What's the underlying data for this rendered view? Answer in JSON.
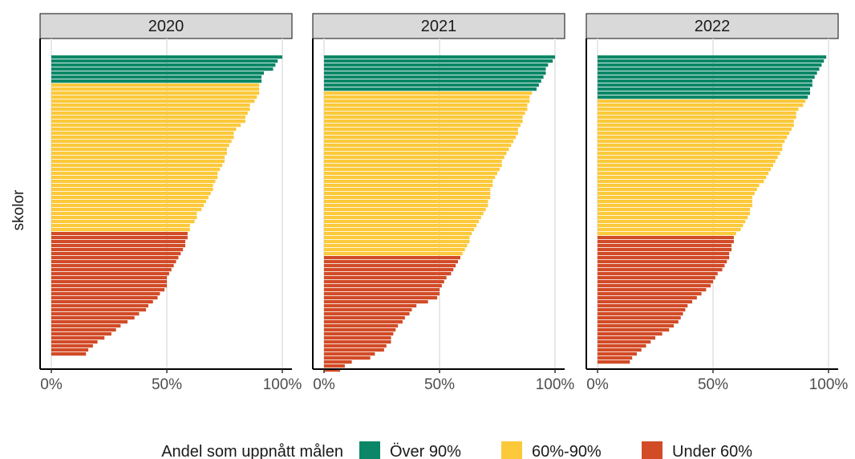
{
  "chart_data": {
    "type": "bar",
    "orientation": "horizontal",
    "title": "",
    "ylabel": "skolor",
    "xlabel": "",
    "xlim": [
      0,
      1
    ],
    "x_ticks": [
      "0%",
      "50%",
      "100%"
    ],
    "legend": {
      "title": "Andel som uppnått målen",
      "position": "bottom",
      "entries": [
        {
          "label": "Över 90%",
          "color": "#0b8767"
        },
        {
          "label": "60%-90%",
          "color": "#fcc93b"
        },
        {
          "label": "Under 60%",
          "color": "#d24b27"
        }
      ]
    },
    "thresholds": [
      0.6,
      0.9
    ],
    "panels": [
      {
        "label": "2020",
        "values": [
          1.0,
          0.98,
          0.97,
          0.96,
          0.92,
          0.91,
          0.91,
          0.9,
          0.9,
          0.9,
          0.89,
          0.88,
          0.86,
          0.86,
          0.85,
          0.84,
          0.84,
          0.82,
          0.8,
          0.79,
          0.79,
          0.78,
          0.77,
          0.76,
          0.76,
          0.75,
          0.75,
          0.74,
          0.73,
          0.72,
          0.72,
          0.71,
          0.7,
          0.7,
          0.69,
          0.68,
          0.67,
          0.66,
          0.65,
          0.63,
          0.63,
          0.62,
          0.6,
          0.6,
          0.59,
          0.59,
          0.58,
          0.58,
          0.57,
          0.56,
          0.55,
          0.54,
          0.53,
          0.52,
          0.51,
          0.5,
          0.5,
          0.5,
          0.49,
          0.47,
          0.46,
          0.44,
          0.42,
          0.41,
          0.38,
          0.36,
          0.33,
          0.3,
          0.28,
          0.26,
          0.23,
          0.2,
          0.18,
          0.16,
          0.15
        ]
      },
      {
        "label": "2021",
        "values": [
          1.0,
          0.99,
          0.97,
          0.96,
          0.96,
          0.95,
          0.94,
          0.93,
          0.92,
          0.9,
          0.89,
          0.89,
          0.88,
          0.88,
          0.87,
          0.86,
          0.86,
          0.85,
          0.84,
          0.84,
          0.83,
          0.82,
          0.81,
          0.8,
          0.79,
          0.78,
          0.77,
          0.77,
          0.76,
          0.75,
          0.74,
          0.73,
          0.73,
          0.72,
          0.72,
          0.72,
          0.71,
          0.71,
          0.7,
          0.69,
          0.68,
          0.67,
          0.66,
          0.65,
          0.64,
          0.63,
          0.63,
          0.62,
          0.61,
          0.6,
          0.59,
          0.58,
          0.57,
          0.56,
          0.55,
          0.53,
          0.52,
          0.51,
          0.5,
          0.5,
          0.49,
          0.45,
          0.4,
          0.38,
          0.37,
          0.35,
          0.34,
          0.32,
          0.31,
          0.3,
          0.29,
          0.29,
          0.27,
          0.26,
          0.22,
          0.2,
          0.12,
          0.09,
          0.07
        ]
      },
      {
        "label": "2022",
        "values": [
          0.99,
          0.98,
          0.97,
          0.96,
          0.95,
          0.94,
          0.93,
          0.93,
          0.92,
          0.92,
          0.91,
          0.9,
          0.89,
          0.87,
          0.86,
          0.86,
          0.85,
          0.85,
          0.84,
          0.83,
          0.82,
          0.81,
          0.8,
          0.8,
          0.79,
          0.78,
          0.77,
          0.76,
          0.75,
          0.74,
          0.73,
          0.72,
          0.7,
          0.69,
          0.68,
          0.67,
          0.67,
          0.67,
          0.66,
          0.66,
          0.65,
          0.64,
          0.63,
          0.62,
          0.6,
          0.59,
          0.59,
          0.58,
          0.58,
          0.57,
          0.57,
          0.56,
          0.55,
          0.54,
          0.52,
          0.51,
          0.5,
          0.49,
          0.47,
          0.45,
          0.43,
          0.41,
          0.39,
          0.38,
          0.37,
          0.36,
          0.35,
          0.33,
          0.31,
          0.28,
          0.25,
          0.23,
          0.21,
          0.19,
          0.17,
          0.15,
          0.14
        ]
      }
    ]
  }
}
